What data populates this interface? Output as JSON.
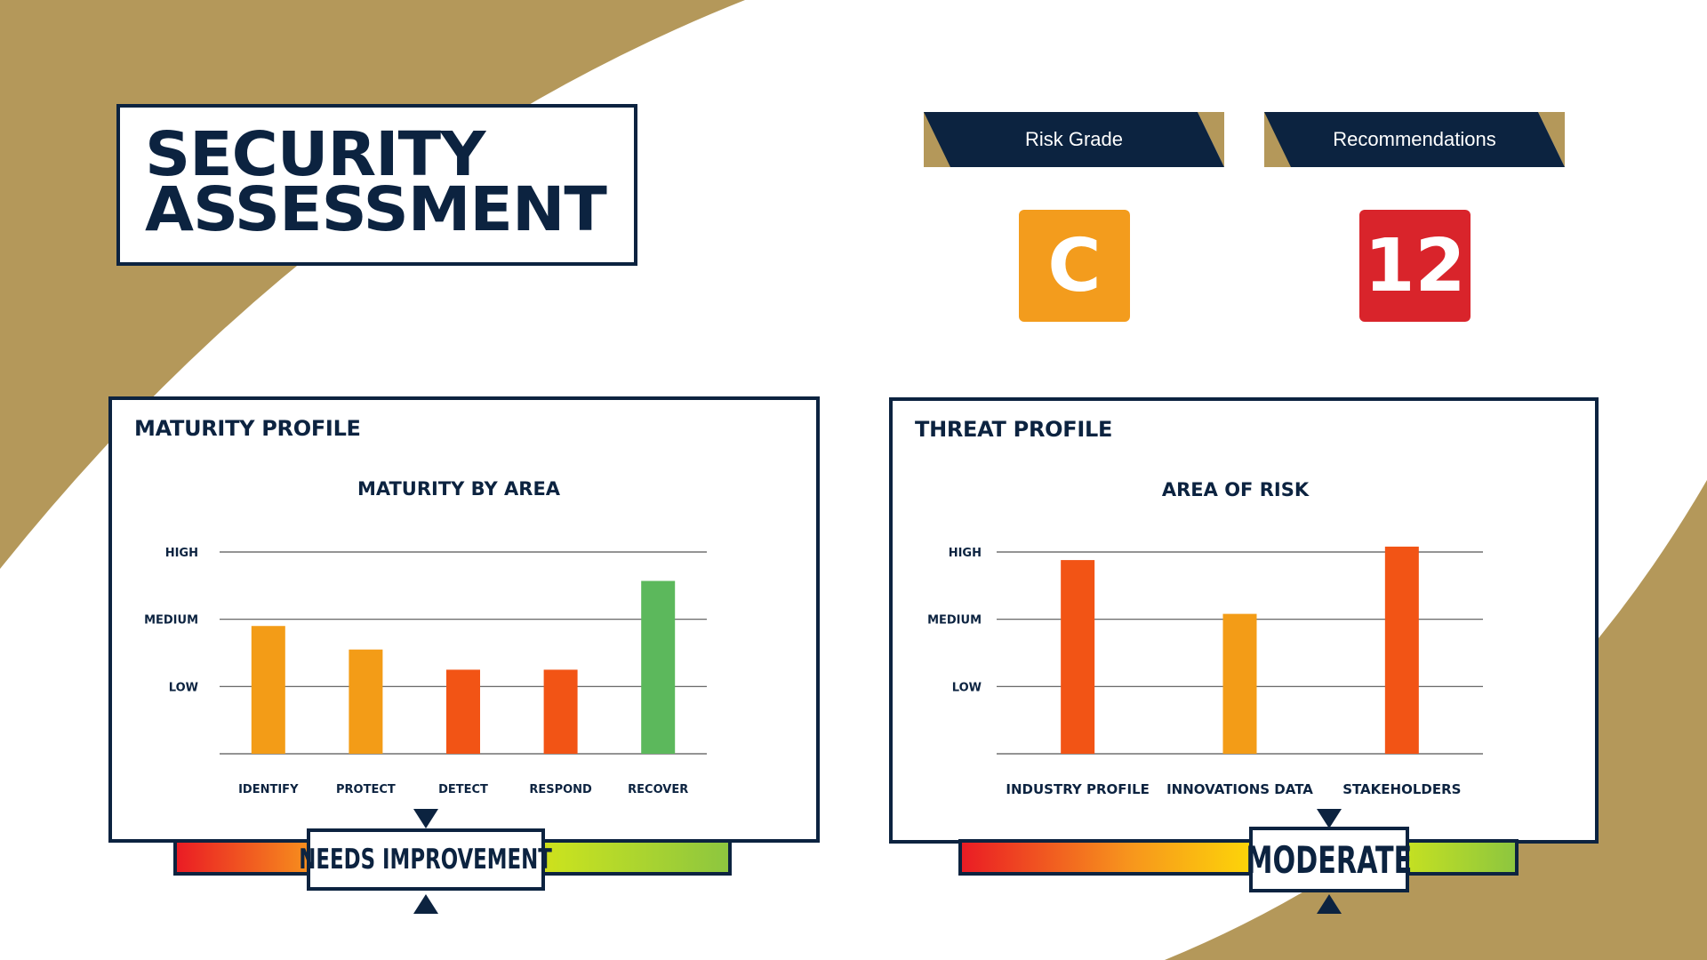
{
  "title": {
    "line1": "SECURITY",
    "line2": "ASSESSMENT"
  },
  "colors": {
    "navy": "#0c2340",
    "gold": "#b4985a",
    "orange": "#f39c17",
    "red_orange": "#f25415",
    "green": "#5cb85c",
    "grade_tile": "#f39c1d",
    "recommendations_tile": "#d9242b"
  },
  "kpis": {
    "risk_grade": {
      "label": "Risk Grade",
      "value": "C"
    },
    "recommendations": {
      "label": "Recommendations",
      "value": "12"
    }
  },
  "maturity_panel": {
    "title": "MATURITY PROFILE",
    "gauge_label": "NEEDS IMPROVEMENT",
    "gauge_position": 0.4
  },
  "threat_panel": {
    "title": "THREAT PROFILE",
    "gauge_label": "MODERATE",
    "gauge_position": 0.66
  },
  "chart_data": [
    {
      "type": "bar",
      "title": "MATURITY BY AREA",
      "categories": [
        "IDENTIFY",
        "PROTECT",
        "DETECT",
        "RESPOND",
        "RECOVER"
      ],
      "values": [
        1.9,
        1.55,
        1.25,
        1.25,
        2.57
      ],
      "bar_colors": [
        "#f39c17",
        "#f39c17",
        "#f25415",
        "#f25415",
        "#5cb85c"
      ],
      "y_ticks": [
        {
          "value": 1,
          "label": "LOW"
        },
        {
          "value": 2,
          "label": "MEDIUM"
        },
        {
          "value": 3,
          "label": "HIGH"
        }
      ],
      "ylim": [
        0,
        3
      ],
      "grid": true
    },
    {
      "type": "bar",
      "title": "AREA OF RISK",
      "categories": [
        "INDUSTRY PROFILE",
        "INNOVATIONS DATA",
        "STAKEHOLDERS"
      ],
      "values": [
        2.88,
        2.08,
        3.08
      ],
      "bar_colors": [
        "#f25415",
        "#f39c17",
        "#f25415"
      ],
      "y_ticks": [
        {
          "value": 1,
          "label": "LOW"
        },
        {
          "value": 2,
          "label": "MEDIUM"
        },
        {
          "value": 3,
          "label": "HIGH"
        }
      ],
      "ylim": [
        0,
        3
      ],
      "grid": true
    }
  ]
}
